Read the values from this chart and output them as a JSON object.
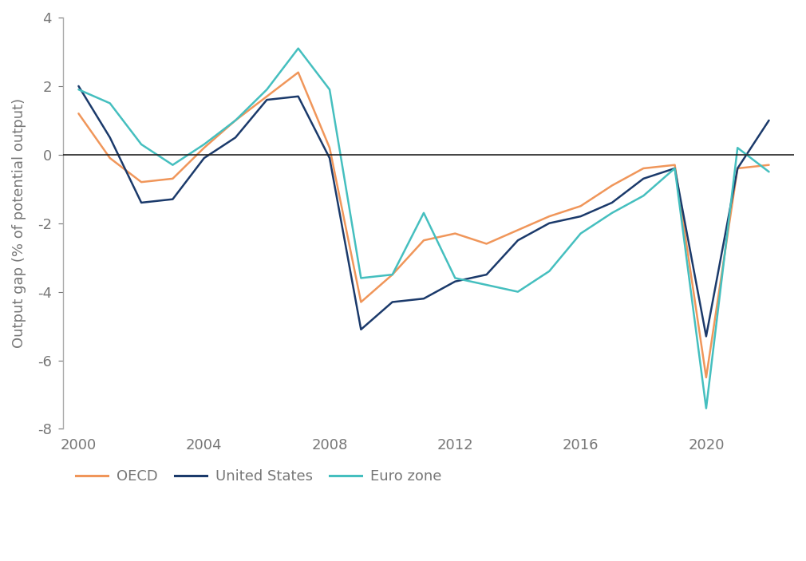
{
  "title": "",
  "ylabel": "Output gap (% of potential output)",
  "ylim": [
    -8,
    4
  ],
  "yticks": [
    -8,
    -6,
    -4,
    -2,
    0,
    2,
    4
  ],
  "xlim": [
    1999.5,
    2022.8
  ],
  "xticks": [
    2000,
    2004,
    2008,
    2012,
    2016,
    2020
  ],
  "background_color": "#ffffff",
  "series": {
    "OECD": {
      "color": "#F0965A",
      "linewidth": 1.8,
      "x": [
        2000,
        2001,
        2002,
        2003,
        2004,
        2005,
        2006,
        2007,
        2008,
        2009,
        2010,
        2011,
        2012,
        2013,
        2014,
        2015,
        2016,
        2017,
        2018,
        2019,
        2020,
        2021,
        2022
      ],
      "y": [
        1.2,
        -0.1,
        -0.8,
        -0.7,
        0.2,
        1.0,
        1.7,
        2.4,
        0.2,
        -4.3,
        -3.5,
        -2.5,
        -2.3,
        -2.6,
        -2.2,
        -1.8,
        -1.5,
        -0.9,
        -0.4,
        -0.3,
        -6.5,
        -0.4,
        -0.3
      ]
    },
    "United States": {
      "color": "#1B3A6B",
      "linewidth": 1.8,
      "x": [
        2000,
        2001,
        2002,
        2003,
        2004,
        2005,
        2006,
        2007,
        2008,
        2009,
        2010,
        2011,
        2012,
        2013,
        2014,
        2015,
        2016,
        2017,
        2018,
        2019,
        2020,
        2021,
        2022
      ],
      "y": [
        2.0,
        0.5,
        -1.4,
        -1.3,
        -0.1,
        0.5,
        1.6,
        1.7,
        -0.1,
        -5.1,
        -4.3,
        -4.2,
        -3.7,
        -3.5,
        -2.5,
        -2.0,
        -1.8,
        -1.4,
        -0.7,
        -0.4,
        -5.3,
        -0.4,
        1.0
      ]
    },
    "Euro zone": {
      "color": "#45BFBF",
      "linewidth": 1.8,
      "x": [
        2000,
        2001,
        2002,
        2003,
        2004,
        2005,
        2006,
        2007,
        2008,
        2009,
        2010,
        2011,
        2012,
        2013,
        2014,
        2015,
        2016,
        2017,
        2018,
        2019,
        2020,
        2021,
        2022
      ],
      "y": [
        1.9,
        1.5,
        0.3,
        -0.3,
        0.3,
        1.0,
        1.9,
        3.1,
        1.9,
        -3.6,
        -3.5,
        -1.7,
        -3.6,
        -3.8,
        -4.0,
        -3.4,
        -2.3,
        -1.7,
        -1.2,
        -0.4,
        -7.4,
        0.2,
        -0.5
      ]
    }
  },
  "legend": {
    "labels": [
      "OECD",
      "United States",
      "Euro zone"
    ],
    "fontsize": 13
  },
  "hline_y": 0,
  "hline_color": "#222222",
  "hline_linewidth": 1.2,
  "spine_color": "#aaaaaa",
  "tick_color": "#777777",
  "ylabel_fontsize": 13,
  "tick_fontsize": 13
}
